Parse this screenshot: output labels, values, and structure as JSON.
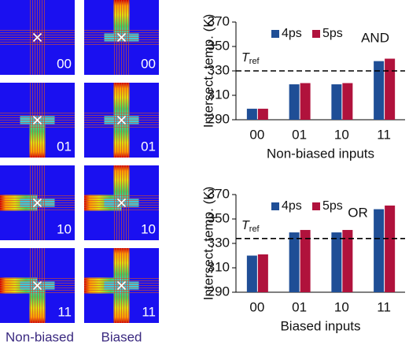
{
  "heatmaps": {
    "column_labels": [
      "Non-biased",
      "Biased"
    ],
    "tiles": [
      [
        "00",
        "00"
      ],
      [
        "01",
        "01"
      ],
      [
        "10",
        "10"
      ],
      [
        "11",
        "11"
      ]
    ]
  },
  "chart_data": [
    {
      "type": "bar",
      "y_label": "Intersect. temp. (K)",
      "x_label": "Non-biased inputs",
      "annotation": "AND",
      "categories": [
        "00",
        "01",
        "10",
        "11"
      ],
      "series": [
        {
          "name": "4ps",
          "color": "#1f4e96",
          "values": [
            299,
            319,
            319,
            338
          ]
        },
        {
          "name": "5ps",
          "color": "#b0123c",
          "values": [
            299,
            320,
            320,
            340
          ]
        }
      ],
      "ylim": [
        290,
        370
      ],
      "yticks": [
        290,
        310,
        330,
        350,
        370
      ],
      "reference": {
        "value": 330,
        "label": "T",
        "subscript": "ref"
      }
    },
    {
      "type": "bar",
      "y_label": "Intersect. temp. (K)",
      "x_label": "Biased inputs",
      "annotation": "OR",
      "categories": [
        "00",
        "01",
        "10",
        "11"
      ],
      "series": [
        {
          "name": "4ps",
          "color": "#1f4e96",
          "values": [
            320,
            339,
            339,
            358
          ]
        },
        {
          "name": "5ps",
          "color": "#b0123c",
          "values": [
            321,
            341,
            341,
            361
          ]
        }
      ],
      "ylim": [
        290,
        370
      ],
      "yticks": [
        290,
        310,
        330,
        350,
        370
      ],
      "reference": {
        "value": 334,
        "label": "T",
        "subscript": "ref"
      }
    }
  ]
}
